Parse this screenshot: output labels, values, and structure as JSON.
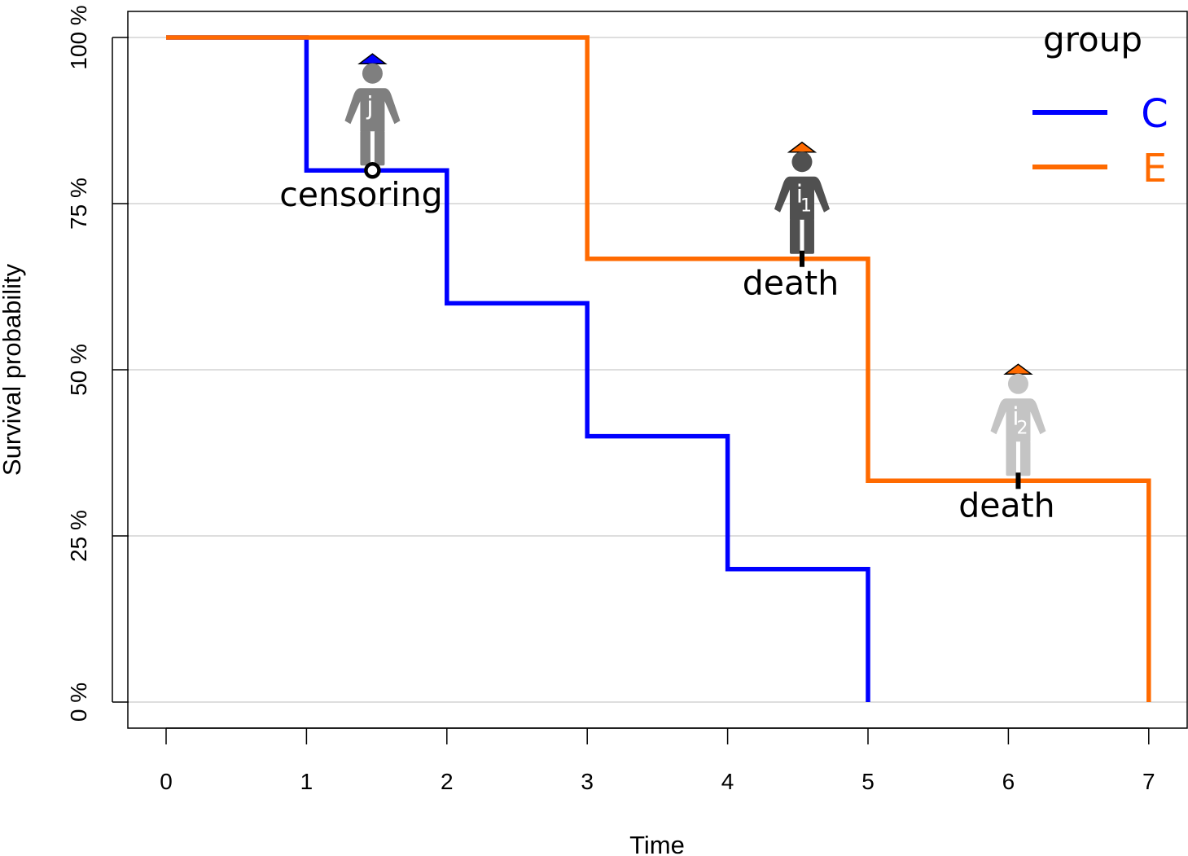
{
  "chart_data": {
    "type": "line",
    "subtype": "step",
    "xlabel": "Time",
    "ylabel": "Survival probability",
    "xlim": [
      0,
      7
    ],
    "ylim": [
      0,
      100
    ],
    "x_ticks": [
      "0",
      "1",
      "2",
      "3",
      "4",
      "5",
      "6",
      "7"
    ],
    "y_ticks": [
      "0 %",
      "25 %",
      "50 %",
      "75 %",
      "100 %"
    ],
    "grid": true,
    "legend": {
      "title": "group",
      "placement": "top-right",
      "entries": [
        {
          "label": "C",
          "color": "#0000ff"
        },
        {
          "label": "E",
          "color": "#ff6a00"
        }
      ]
    },
    "series": [
      {
        "name": "C",
        "color": "#0000ff",
        "x": [
          0,
          1,
          2,
          3,
          4,
          5
        ],
        "y": [
          100,
          80,
          60,
          40,
          20,
          0
        ]
      },
      {
        "name": "E",
        "color": "#ff6a00",
        "x": [
          0,
          3,
          5,
          7
        ],
        "y": [
          100,
          66.7,
          33.3,
          0
        ]
      }
    ],
    "annotations": [
      {
        "text": "censoring",
        "person": "j",
        "sub": "",
        "hat_color": "#0000ff",
        "body_color": "#7f7f7f",
        "marker": "circle",
        "x": 1.47,
        "y": 80
      },
      {
        "text": "death",
        "person": "i",
        "sub": "1",
        "hat_color": "#ff6a00",
        "body_color": "#505050",
        "marker": "tick",
        "x": 4.53,
        "y": 66.7
      },
      {
        "text": "death",
        "person": "i",
        "sub": "2",
        "hat_color": "#ff6a00",
        "body_color": "#c4c4c4",
        "marker": "tick",
        "x": 6.07,
        "y": 33.3
      }
    ]
  }
}
